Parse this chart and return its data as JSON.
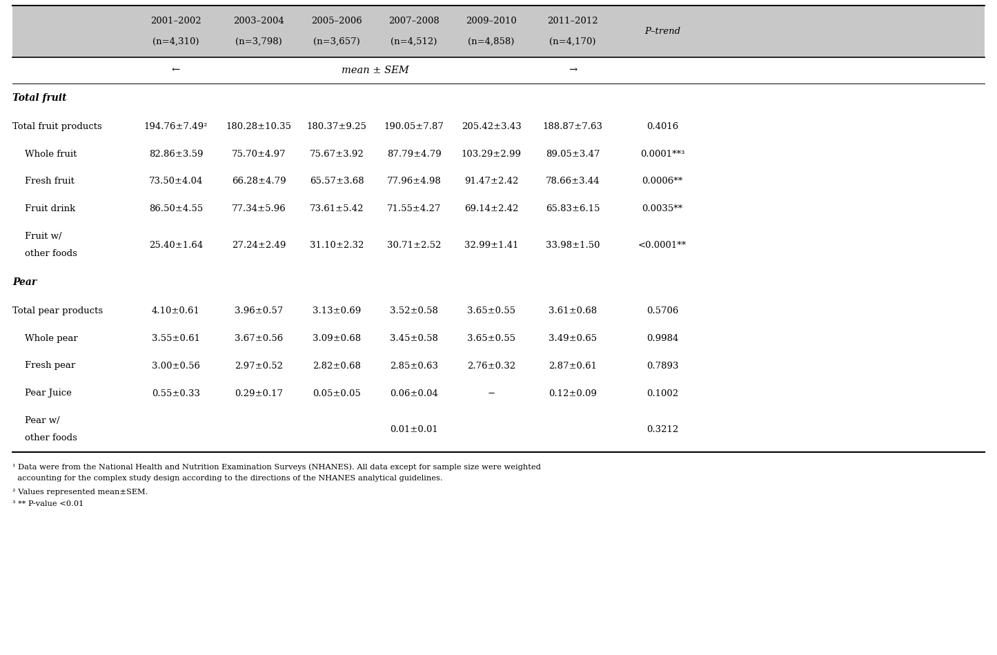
{
  "header_bg": "#c8c8c8",
  "year_labels": [
    "2001–2002",
    "2003–2004",
    "2005–2006",
    "2007–2008",
    "2009–2010",
    "2011–2012"
  ],
  "n_labels": [
    "(n=4,310)",
    "(n=3,798)",
    "(n=3,657)",
    "(n=4,512)",
    "(n=4,858)",
    "(n=4,170)"
  ],
  "p_trend_header": "P–trend",
  "mean_sem_label": "mean ± SEM",
  "rows": [
    {
      "label": "Total fruit",
      "type": "section",
      "values": []
    },
    {
      "label": "Total fruit products",
      "type": "data",
      "indent": 0,
      "values": [
        "194.76±7.49²",
        "180.28±10.35",
        "180.37±9.25",
        "190.05±7.87",
        "205.42±3.43",
        "188.87±7.63",
        "0.4016"
      ]
    },
    {
      "label": "Whole fruit",
      "type": "data",
      "indent": 1,
      "values": [
        "82.86±3.59",
        "75.70±4.97",
        "75.67±3.92",
        "87.79±4.79",
        "103.29±2.99",
        "89.05±3.47",
        "0.0001**³"
      ]
    },
    {
      "label": "Fresh fruit",
      "type": "data",
      "indent": 1,
      "values": [
        "73.50±4.04",
        "66.28±4.79",
        "65.57±3.68",
        "77.96±4.98",
        "91.47±2.42",
        "78.66±3.44",
        "0.0006**"
      ]
    },
    {
      "label": "Fruit drink",
      "type": "data",
      "indent": 1,
      "values": [
        "86.50±4.55",
        "77.34±5.96",
        "73.61±5.42",
        "71.55±4.27",
        "69.14±2.42",
        "65.83±6.15",
        "0.0035**"
      ]
    },
    {
      "label": "Fruit w/\nother foods",
      "type": "data_tall",
      "indent": 1,
      "values": [
        "25.40±1.64",
        "27.24±2.49",
        "31.10±2.32",
        "30.71±2.52",
        "32.99±1.41",
        "33.98±1.50",
        "<0.0001**"
      ]
    },
    {
      "label": "Pear",
      "type": "section",
      "values": []
    },
    {
      "label": "Total pear products",
      "type": "data",
      "indent": 0,
      "values": [
        "4.10±0.61",
        "3.96±0.57",
        "3.13±0.69",
        "3.52±0.58",
        "3.65±0.55",
        "3.61±0.68",
        "0.5706"
      ]
    },
    {
      "label": "Whole pear",
      "type": "data",
      "indent": 1,
      "values": [
        "3.55±0.61",
        "3.67±0.56",
        "3.09±0.68",
        "3.45±0.58",
        "3.65±0.55",
        "3.49±0.65",
        "0.9984"
      ]
    },
    {
      "label": "Fresh pear",
      "type": "data",
      "indent": 1,
      "values": [
        "3.00±0.56",
        "2.97±0.52",
        "2.82±0.68",
        "2.85±0.63",
        "2.76±0.32",
        "2.87±0.61",
        "0.7893"
      ]
    },
    {
      "label": "Pear Juice",
      "type": "data",
      "indent": 1,
      "values": [
        "0.55±0.33",
        "0.29±0.17",
        "0.05±0.05",
        "0.06±0.04",
        "−",
        "0.12±0.09",
        "0.1002"
      ]
    },
    {
      "label": "Pear w/\nother foods",
      "type": "data_tall",
      "indent": 1,
      "values": [
        "",
        "",
        "",
        "0.01±0.01",
        "",
        "",
        "0.3212"
      ]
    }
  ],
  "footnotes": [
    "¹ Data were from the National Health and Nutrition Examination Surveys (NHANES). All data except for sample size were weighted accounting for the complex study design according to the directions of the NHANES analytical guidelines.",
    "² Values represented mean±SEM.",
    "³ ** P-value <0.01"
  ]
}
